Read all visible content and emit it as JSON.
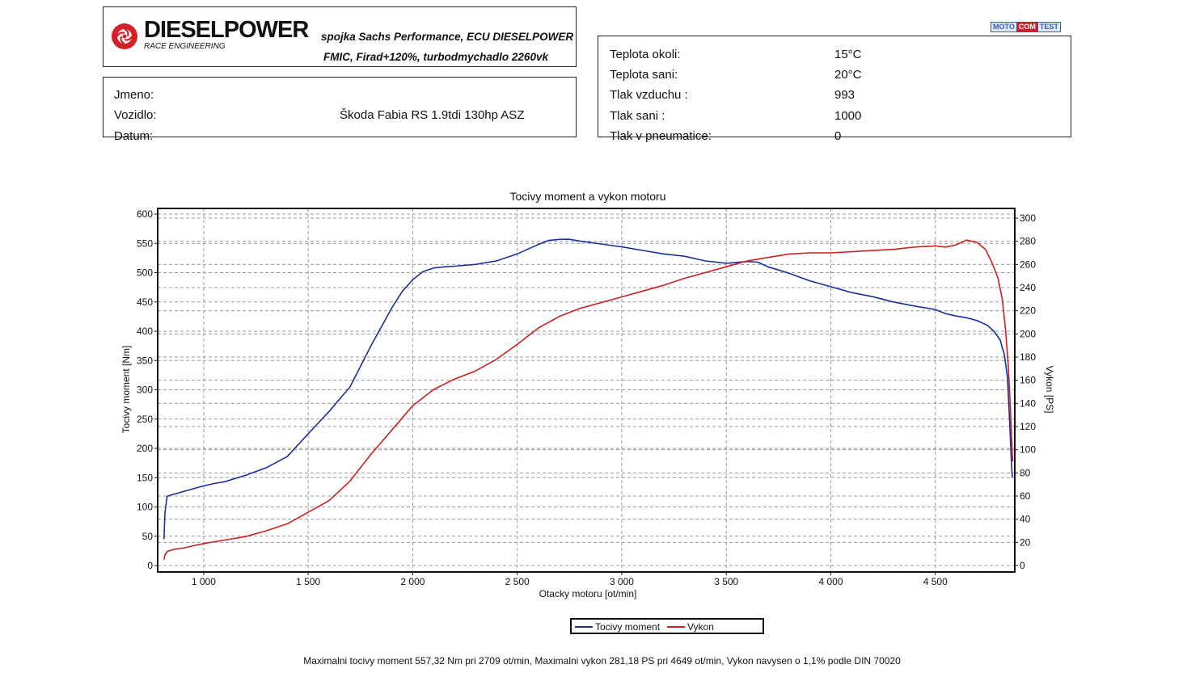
{
  "header": {
    "brand": "DIESELPOWER",
    "brand_sub": "RACE ENGINEERING",
    "spec_line1": "spojka Sachs Performance, ECU DIESELPOWER",
    "spec_line2": "FMIC, Firad+120%,  turbodmychadlo 2260vk",
    "motocom": [
      "MOTO",
      "COM",
      "TEST"
    ]
  },
  "info": {
    "rows": [
      {
        "label": "Jmeno:",
        "value": ""
      },
      {
        "label": "Vozidlo:",
        "value": "Škoda Fabia RS 1.9tdi 130hp ASZ"
      },
      {
        "label": "Datum:",
        "value": ""
      }
    ]
  },
  "conditions": {
    "rows": [
      {
        "label": "Teplota okoli:",
        "value": "15°C"
      },
      {
        "label": "Teplota sani:",
        "value": "20°C"
      },
      {
        "label": "Tlak vzduchu :",
        "value": "993"
      },
      {
        "label": "Tlak sani :",
        "value": "1000"
      },
      {
        "label": "Tlak v pneumatice:",
        "value": "0"
      }
    ]
  },
  "chart_data": {
    "type": "line",
    "title": "Tocivy moment a vykon motoru",
    "xlabel": "Otacky motoru [ot/min]",
    "ylabel_left": "Tocivy moment [Nm]",
    "ylabel_right": "Vykon [PS]",
    "xlim": [
      780,
      4880
    ],
    "ylim_left": [
      0,
      600
    ],
    "ylim_right": [
      0,
      300
    ],
    "x_ticks": [
      1000,
      1500,
      2000,
      2500,
      3000,
      3500,
      4000,
      4500
    ],
    "x_tick_labels": [
      "1 000",
      "1 500",
      "2 000",
      "2 500",
      "3 000",
      "3 500",
      "4 000",
      "4 500"
    ],
    "y_left_ticks": [
      0,
      50,
      100,
      150,
      200,
      250,
      300,
      350,
      400,
      450,
      500,
      550,
      600
    ],
    "y_right_ticks": [
      0,
      20,
      40,
      60,
      80,
      100,
      120,
      140,
      160,
      180,
      200,
      220,
      240,
      260,
      280,
      300
    ],
    "grid": true,
    "legend_position": "bottom",
    "series": [
      {
        "name": "Tocivy moment",
        "axis": "left",
        "color": "#1a2e9c",
        "x": [
          810,
          815,
          825,
          840,
          860,
          880,
          900,
          950,
          1000,
          1050,
          1100,
          1200,
          1300,
          1400,
          1500,
          1600,
          1700,
          1800,
          1900,
          1950,
          2000,
          2050,
          2100,
          2150,
          2200,
          2300,
          2400,
          2500,
          2600,
          2650,
          2709,
          2750,
          2800,
          2900,
          3000,
          3100,
          3200,
          3300,
          3400,
          3500,
          3600,
          3650,
          3700,
          3800,
          3900,
          4000,
          4100,
          4200,
          4300,
          4400,
          4500,
          4550,
          4600,
          4650,
          4700,
          4750,
          4780,
          4810,
          4830,
          4845,
          4855,
          4862,
          4868
        ],
        "y": [
          45,
          90,
          118,
          120,
          122,
          124,
          126,
          131,
          136,
          140,
          143,
          154,
          167,
          186,
          225,
          263,
          305,
          375,
          440,
          468,
          488,
          502,
          508,
          510,
          511,
          514,
          520,
          532,
          548,
          555,
          557,
          557,
          554,
          549,
          544,
          538,
          532,
          528,
          520,
          516,
          519,
          518,
          510,
          499,
          486,
          476,
          466,
          459,
          450,
          443,
          437,
          430,
          426,
          423,
          418,
          410,
          400,
          385,
          360,
          320,
          250,
          190,
          150
        ]
      },
      {
        "name": "Vykon",
        "axis": "right",
        "color": "#cc1f1f",
        "x": [
          810,
          815,
          825,
          840,
          860,
          900,
          950,
          1000,
          1100,
          1200,
          1300,
          1400,
          1500,
          1600,
          1700,
          1800,
          1900,
          2000,
          2100,
          2200,
          2300,
          2400,
          2500,
          2600,
          2700,
          2800,
          2900,
          3000,
          3100,
          3200,
          3300,
          3400,
          3500,
          3600,
          3700,
          3800,
          3900,
          4000,
          4100,
          4200,
          4300,
          4400,
          4500,
          4550,
          4600,
          4649,
          4700,
          4740,
          4770,
          4800,
          4820,
          4835,
          4848,
          4858,
          4865,
          4870
        ],
        "y": [
          5,
          9,
          12,
          13,
          14,
          15,
          17,
          19,
          22,
          25,
          30,
          36,
          46,
          56,
          73,
          96,
          117,
          138,
          152,
          161,
          168,
          178,
          191,
          205,
          215,
          222,
          227,
          232,
          237,
          242,
          248,
          253,
          258,
          263,
          266,
          269,
          270,
          270,
          271,
          272,
          273,
          275,
          276,
          275,
          277,
          281,
          279,
          273,
          262,
          248,
          230,
          205,
          175,
          140,
          110,
          90
        ]
      }
    ]
  },
  "legend": {
    "items": [
      {
        "label": "Tocivy moment",
        "color": "#1a2e9c"
      },
      {
        "label": "Vykon",
        "color": "#cc1f1f"
      }
    ]
  },
  "footer": {
    "summary": "Maximalni tocivy moment 557,32 Nm pri 2709 ot/min,  Maximalni vykon 281,18 PS pri 4649 ot/min,  Vykon navysen o 1,1% podle DIN 70020"
  }
}
